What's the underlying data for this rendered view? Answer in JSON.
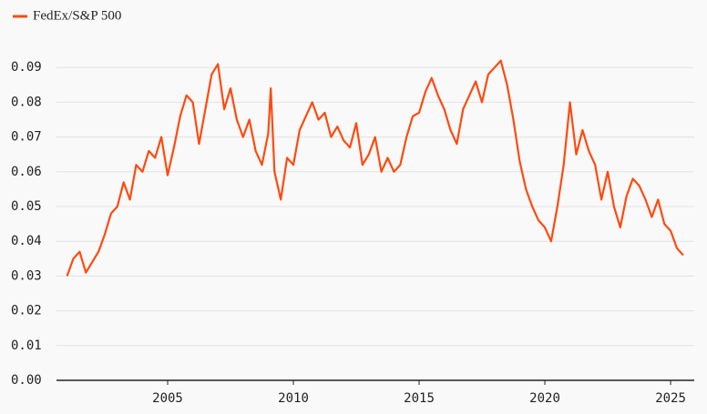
{
  "chart_data": {
    "type": "line",
    "series": [
      {
        "name": "FedEx/S&P 500",
        "color": "#ff4a0f",
        "values": [
          0.03,
          0.035,
          0.037,
          0.031,
          0.034,
          0.037,
          0.042,
          0.048,
          0.05,
          0.057,
          0.052,
          0.062,
          0.06,
          0.066,
          0.064,
          0.07,
          0.059,
          0.067,
          0.076,
          0.082,
          0.08,
          0.068,
          0.078,
          0.088,
          0.091,
          0.078,
          0.084,
          0.075,
          0.07,
          0.075,
          0.066,
          0.062,
          0.071,
          0.084,
          0.06,
          0.052,
          0.064,
          0.062,
          0.072,
          0.076,
          0.08,
          0.075,
          0.077,
          0.07,
          0.073,
          0.069,
          0.067,
          0.074,
          0.062,
          0.065,
          0.07,
          0.06,
          0.064,
          0.06,
          0.062,
          0.07,
          0.076,
          0.077,
          0.083,
          0.087,
          0.082,
          0.078,
          0.072,
          0.068,
          0.078,
          0.082,
          0.086,
          0.08,
          0.088,
          0.09,
          0.092,
          0.085,
          0.075,
          0.063,
          0.055,
          0.05,
          0.046,
          0.044,
          0.04,
          0.05,
          0.062,
          0.08,
          0.065,
          0.072,
          0.066,
          0.062,
          0.052,
          0.06,
          0.05,
          0.044,
          0.053,
          0.058,
          0.056,
          0.052,
          0.047,
          0.052,
          0.045,
          0.043,
          0.038,
          0.036
        ]
      }
    ],
    "x": [
      2001.0,
      2001.25,
      2001.5,
      2001.75,
      2002.0,
      2002.25,
      2002.5,
      2002.75,
      2003.0,
      2003.25,
      2003.5,
      2003.75,
      2004.0,
      2004.25,
      2004.5,
      2004.75,
      2005.0,
      2005.25,
      2005.5,
      2005.75,
      2006.0,
      2006.25,
      2006.5,
      2006.75,
      2007.0,
      2007.25,
      2007.5,
      2007.75,
      2008.0,
      2008.25,
      2008.5,
      2008.75,
      2009.0,
      2009.1,
      2009.25,
      2009.5,
      2009.75,
      2010.0,
      2010.25,
      2010.5,
      2010.75,
      2011.0,
      2011.25,
      2011.5,
      2011.75,
      2012.0,
      2012.25,
      2012.5,
      2012.75,
      2013.0,
      2013.25,
      2013.5,
      2013.75,
      2014.0,
      2014.25,
      2014.5,
      2014.75,
      2015.0,
      2015.25,
      2015.5,
      2015.75,
      2016.0,
      2016.25,
      2016.5,
      2016.75,
      2017.0,
      2017.25,
      2017.5,
      2017.75,
      2018.0,
      2018.25,
      2018.5,
      2018.75,
      2019.0,
      2019.25,
      2019.5,
      2019.75,
      2020.0,
      2020.25,
      2020.5,
      2020.75,
      2021.0,
      2021.25,
      2021.5,
      2021.75,
      2022.0,
      2022.25,
      2022.5,
      2022.75,
      2023.0,
      2023.25,
      2023.5,
      2023.75,
      2024.0,
      2024.25,
      2024.5,
      2024.75,
      2025.0,
      2025.25,
      2025.5
    ],
    "xlim": [
      2000.58,
      2025.94
    ],
    "xticks": [
      2005,
      2010,
      2015,
      2020,
      2025
    ],
    "ylim": [
      0,
      0.1
    ],
    "yticks": [
      {
        "value": 0,
        "label": "0.00"
      },
      0.01,
      0.02,
      0.03,
      0.04,
      0.05,
      0.06,
      0.07,
      0.08,
      0.09
    ],
    "grid": true
  }
}
